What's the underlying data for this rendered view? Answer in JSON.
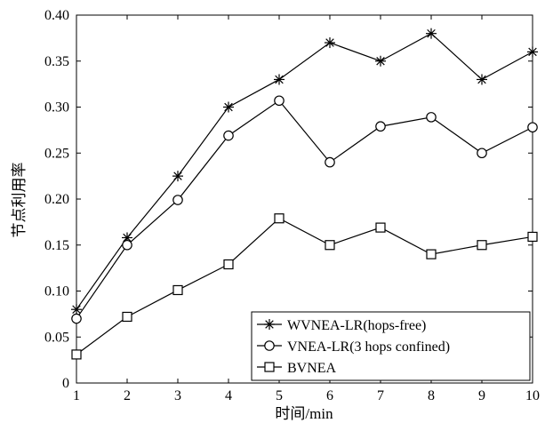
{
  "chart_data": {
    "type": "line",
    "title": "",
    "xlabel": "时间/min",
    "ylabel": "节点利用率",
    "x": [
      1,
      2,
      3,
      4,
      5,
      6,
      7,
      8,
      9,
      10
    ],
    "xlim": [
      1,
      10
    ],
    "ylim": [
      0,
      0.4
    ],
    "xticks": [
      "1",
      "2",
      "3",
      "4",
      "5",
      "6",
      "7",
      "8",
      "9",
      "10"
    ],
    "yticks": [
      "0",
      "0.05",
      "0.10",
      "0.15",
      "0.20",
      "0.25",
      "0.30",
      "0.35",
      "0.40"
    ],
    "grid": false,
    "legend_position": "bottom-right",
    "series": [
      {
        "name": "WVNEA-LR(hops-free)",
        "marker": "asterisk",
        "color": "#000000",
        "values": [
          0.08,
          0.158,
          0.225,
          0.3,
          0.33,
          0.37,
          0.35,
          0.38,
          0.33,
          0.36
        ]
      },
      {
        "name": "VNEA-LR(3 hops confined)",
        "marker": "circle",
        "color": "#000000",
        "values": [
          0.07,
          0.15,
          0.199,
          0.269,
          0.307,
          0.24,
          0.279,
          0.289,
          0.25,
          0.278
        ]
      },
      {
        "name": "BVNEA",
        "marker": "square",
        "color": "#000000",
        "values": [
          0.031,
          0.072,
          0.101,
          0.129,
          0.179,
          0.15,
          0.169,
          0.14,
          0.15,
          0.159
        ]
      }
    ]
  }
}
